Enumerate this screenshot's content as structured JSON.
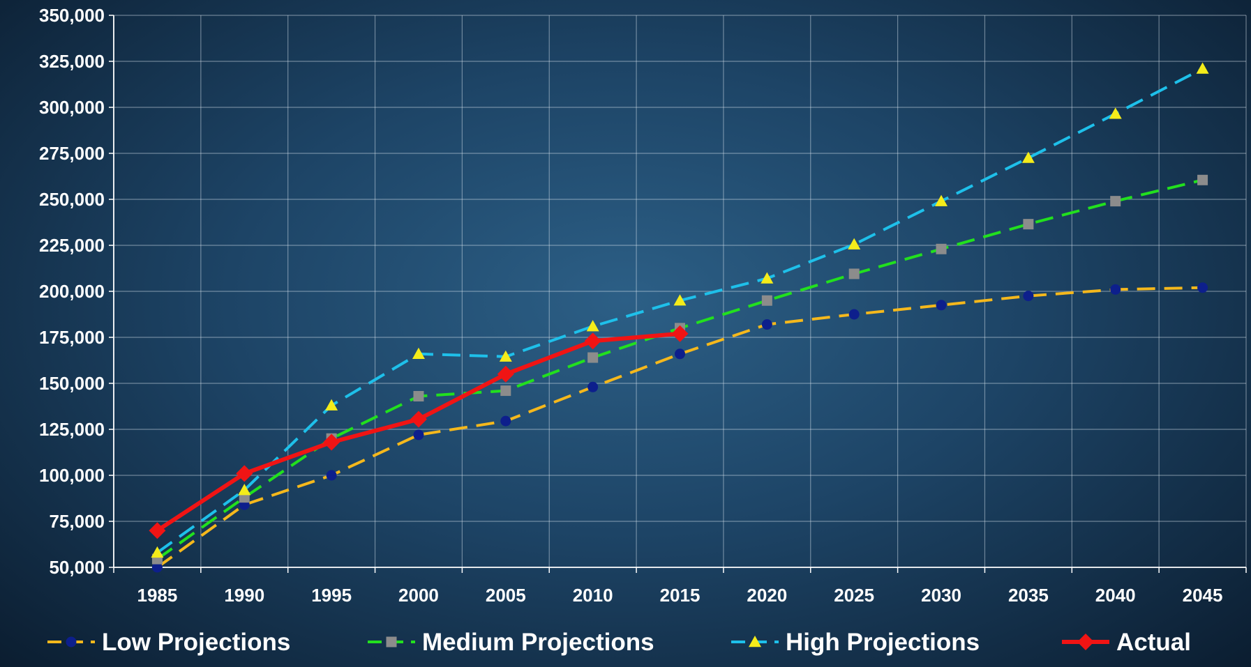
{
  "chart_data": {
    "type": "line",
    "title": "",
    "xlabel": "",
    "ylabel": "",
    "x": [
      1985,
      1990,
      1995,
      2000,
      2005,
      2010,
      2015,
      2020,
      2025,
      2030,
      2035,
      2040,
      2045
    ],
    "x_tick_labels": [
      "1985",
      "1990",
      "1995",
      "2000",
      "2005",
      "2010",
      "2015",
      "2020",
      "2025",
      "2030",
      "2035",
      "2040",
      "2045"
    ],
    "y_tick_labels": [
      "350,000",
      "325,000",
      "300,000",
      "275,000",
      "250,000",
      "225,000",
      "200,000",
      "175,000",
      "150,000",
      "125,000",
      "100,000",
      "75,000",
      "50,000"
    ],
    "y_ticks": [
      350000,
      325000,
      300000,
      275000,
      250000,
      225000,
      200000,
      175000,
      150000,
      125000,
      100000,
      75000,
      50000
    ],
    "ylim": [
      50000,
      350000
    ],
    "grid": true,
    "legend_position": "bottom",
    "series": [
      {
        "name": "Low Projections",
        "line_color": "#f5b81c",
        "marker_color": "#0d1f8c",
        "marker": "circle",
        "dash": "dashed",
        "values": [
          50000,
          84000,
          100000,
          122000,
          129500,
          148000,
          166000,
          182000,
          187500,
          192500,
          197500,
          201000,
          202000
        ]
      },
      {
        "name": "Medium Projections",
        "line_color": "#22e01e",
        "marker_color": "#8c8c8c",
        "marker": "square",
        "dash": "dashed",
        "values": [
          54500,
          88000,
          120000,
          143000,
          146000,
          164000,
          180000,
          195000,
          209500,
          223000,
          236500,
          249000,
          260500
        ]
      },
      {
        "name": "High Projections",
        "line_color": "#1ec0ea",
        "marker_color": "#f4ec1a",
        "marker": "triangle",
        "dash": "dashed",
        "values": [
          58000,
          92000,
          138000,
          166000,
          164500,
          181000,
          195000,
          207000,
          225500,
          249000,
          272500,
          296500,
          321000
        ]
      },
      {
        "name": "Actual",
        "line_color": "#f01414",
        "marker_color": "#f01414",
        "marker": "diamond",
        "dash": "solid",
        "values": [
          70000,
          101000,
          118000,
          130500,
          155000,
          173000,
          177000,
          null,
          null,
          null,
          null,
          null,
          null
        ]
      }
    ]
  }
}
